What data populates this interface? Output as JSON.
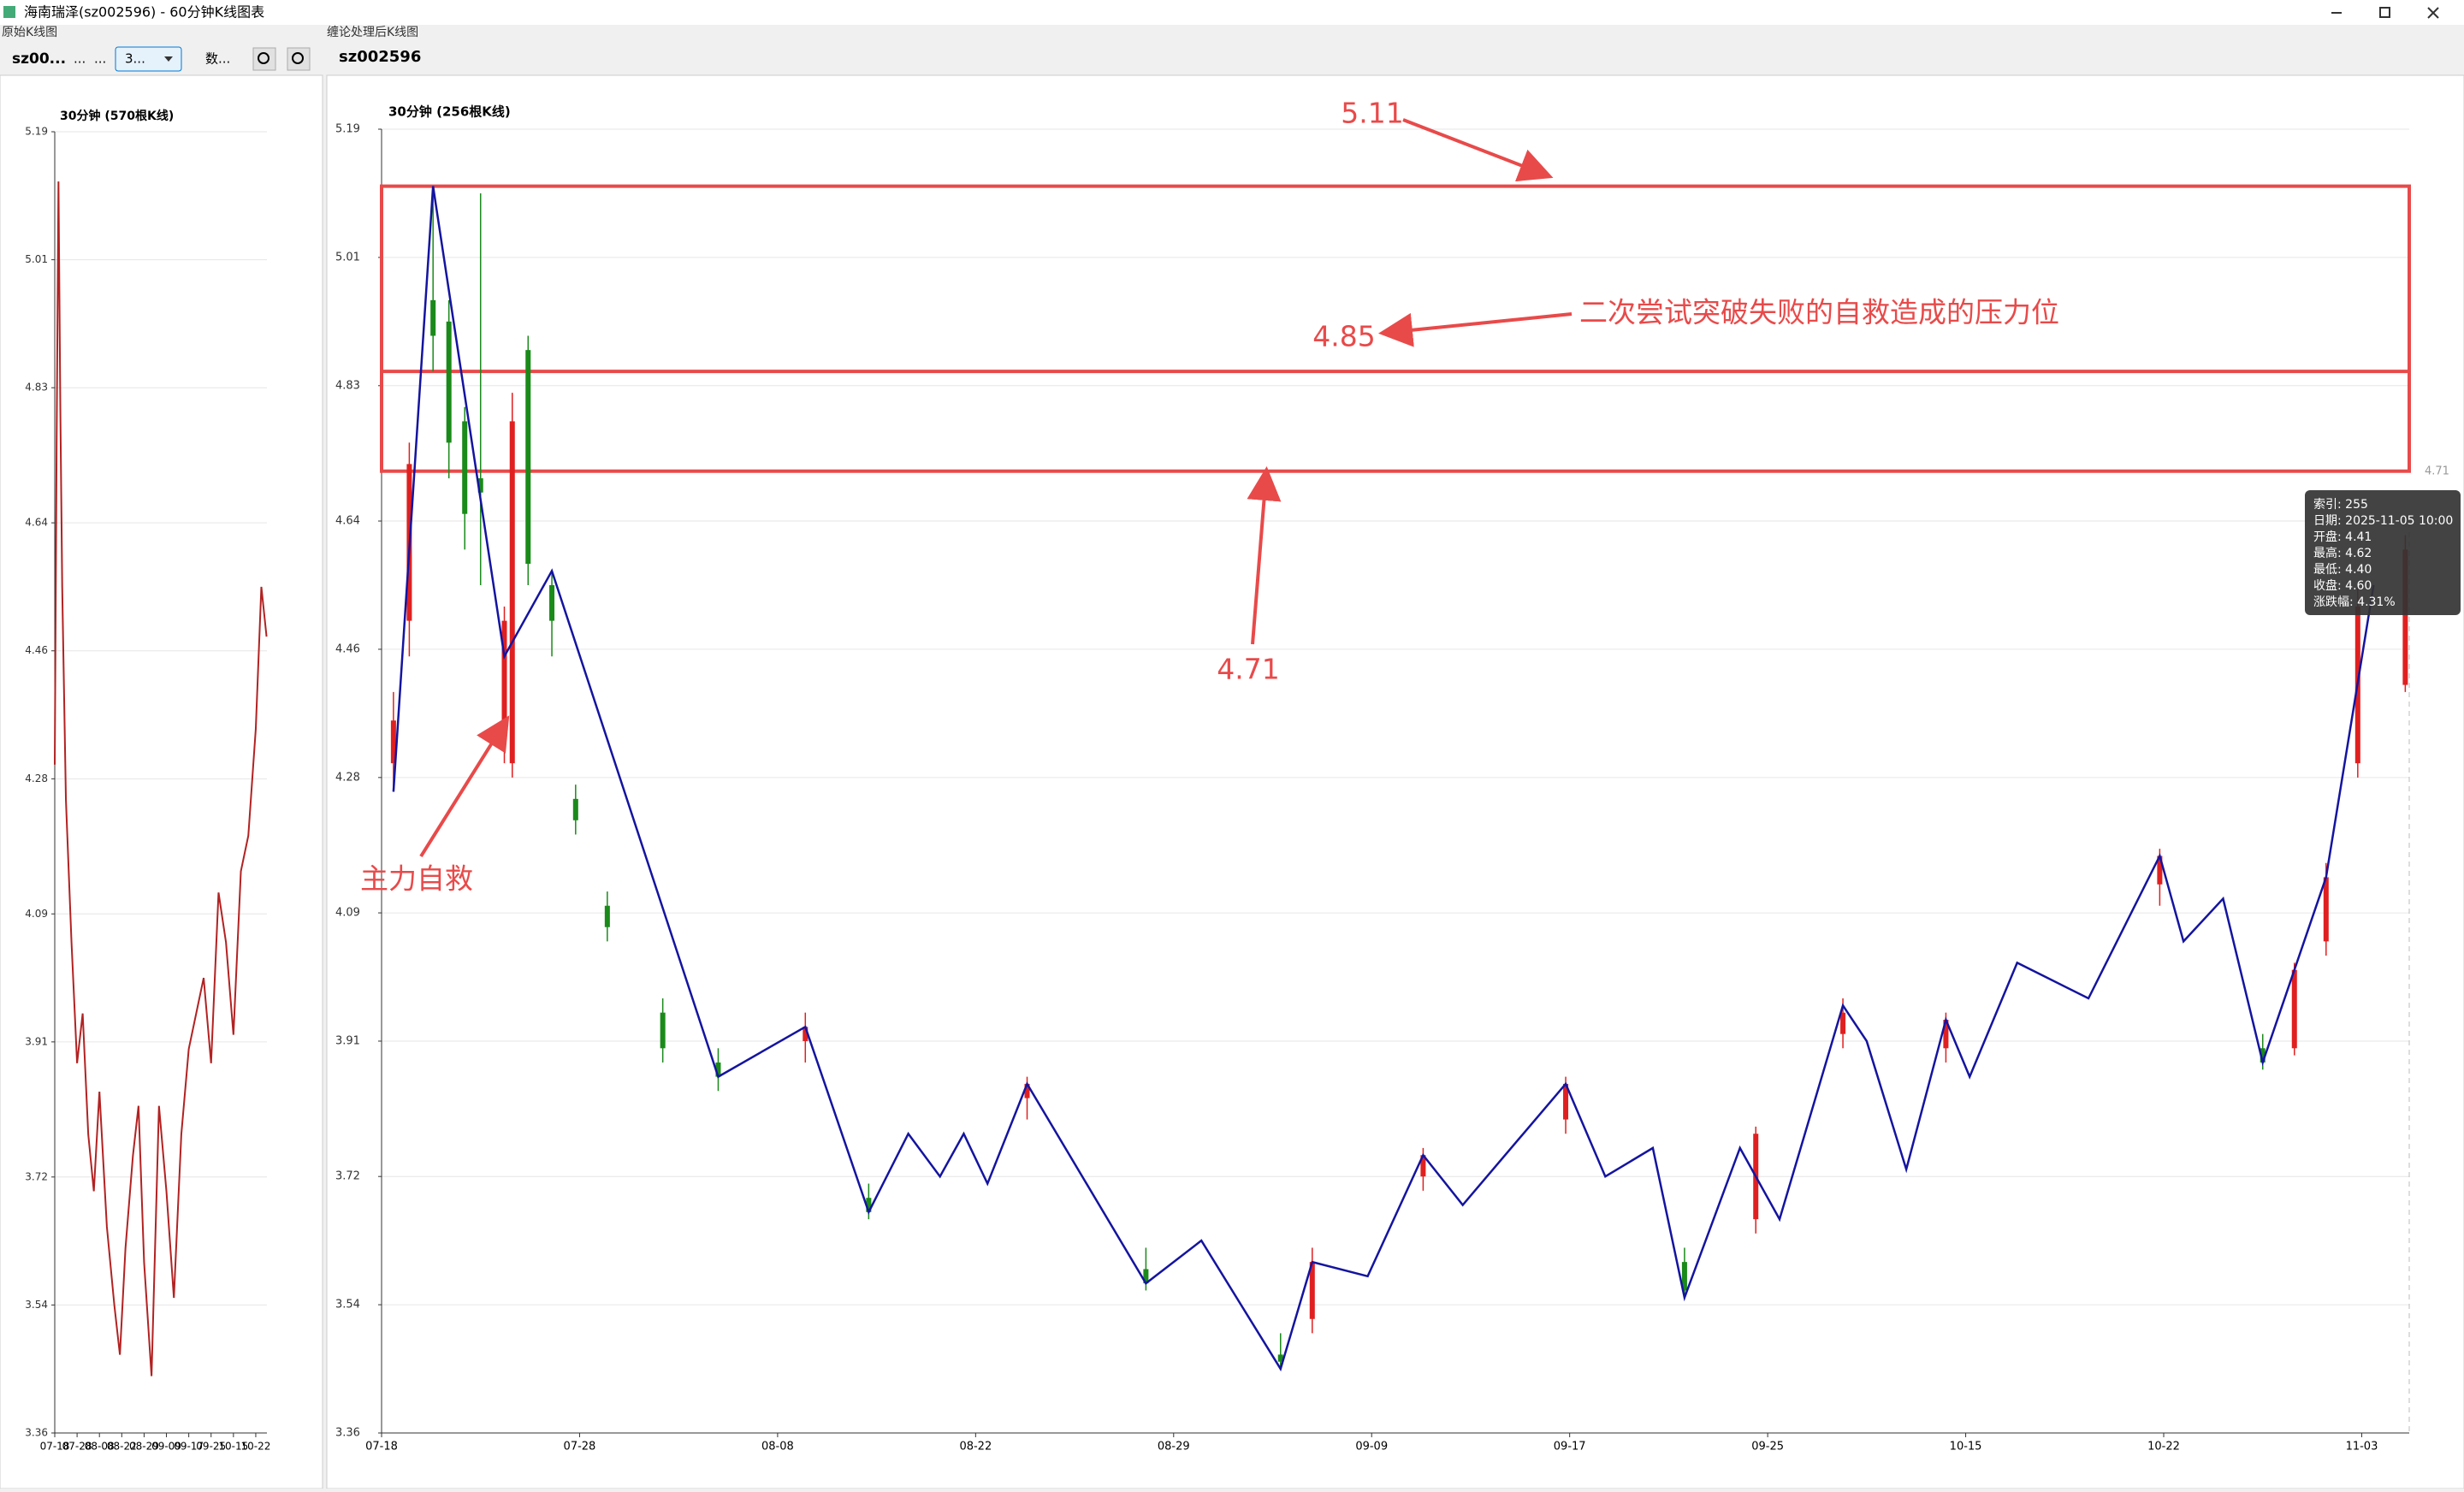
{
  "window": {
    "title": "海南瑞泽(sz002596) - 60分钟K线图表"
  },
  "left_panel": {
    "label": "原始K线图",
    "symbol": "sz00...",
    "field1": "...",
    "field2": "...",
    "combo": "3...",
    "field3": "数..."
  },
  "right_panel": {
    "label": "缠论处理后K线图",
    "symbol": "sz002596"
  },
  "chart_data": [
    {
      "type": "line",
      "title": "30分钟 (570根K线)",
      "color": "#b22222",
      "x": [
        0,
        5,
        10,
        15,
        20,
        30,
        45,
        60,
        75,
        90,
        105,
        120,
        140,
        160,
        175,
        190,
        210,
        225,
        240,
        260,
        280,
        300,
        320,
        340,
        360,
        380,
        400,
        420,
        440,
        460,
        480,
        500,
        520,
        540,
        555,
        569
      ],
      "y": [
        4.3,
        4.75,
        5.12,
        4.8,
        4.55,
        4.25,
        4.05,
        3.88,
        3.95,
        3.78,
        3.7,
        3.84,
        3.65,
        3.54,
        3.47,
        3.62,
        3.75,
        3.82,
        3.6,
        3.44,
        3.82,
        3.7,
        3.55,
        3.78,
        3.9,
        3.95,
        4.0,
        3.88,
        4.12,
        4.05,
        3.92,
        4.15,
        4.2,
        4.35,
        4.55,
        4.48
      ],
      "xlim": [
        0,
        570
      ],
      "ylim": [
        3.36,
        5.19
      ],
      "yticks": [
        5.19,
        5.01,
        4.83,
        4.64,
        4.46,
        4.28,
        4.09,
        3.91,
        3.72,
        3.54,
        3.36
      ],
      "xticks": [
        {
          "value": 0,
          "label": "07-18"
        },
        {
          "value": 60,
          "label": "07-28"
        },
        {
          "value": 120,
          "label": "08-08"
        },
        {
          "value": 180,
          "label": "08-22"
        },
        {
          "value": 240,
          "label": "08-29"
        },
        {
          "value": 300,
          "label": "09-09"
        },
        {
          "value": 360,
          "label": "09-17"
        },
        {
          "value": 420,
          "label": "09-25"
        },
        {
          "value": 480,
          "label": "10-15"
        },
        {
          "value": 540,
          "label": "10-22"
        }
      ],
      "grid": true
    },
    {
      "type": "candlestick",
      "title": "30分钟 (256根K线)",
      "up_color": "#e02020",
      "down_color": "#1a8a1a",
      "zigzag_color": "#1414a0",
      "xlim": [
        0,
        256
      ],
      "ylim": [
        3.36,
        5.19
      ],
      "yticks": [
        5.19,
        5.01,
        4.83,
        4.64,
        4.46,
        4.28,
        4.09,
        3.91,
        3.72,
        3.54,
        3.36
      ],
      "xticks": [
        {
          "value": 0,
          "label": "07-18"
        },
        {
          "value": 25,
          "label": "07-28"
        },
        {
          "value": 50,
          "label": "08-08"
        },
        {
          "value": 75,
          "label": "08-22"
        },
        {
          "value": 100,
          "label": "08-29"
        },
        {
          "value": 125,
          "label": "09-09"
        },
        {
          "value": 150,
          "label": "09-17"
        },
        {
          "value": 175,
          "label": "09-25"
        },
        {
          "value": 200,
          "label": "10-15"
        },
        {
          "value": 225,
          "label": "10-22"
        },
        {
          "value": 250,
          "label": "11-03"
        }
      ],
      "grid": true,
      "candles": [
        {
          "x": 1,
          "open": 4.3,
          "high": 4.4,
          "low": 4.26,
          "close": 4.36
        },
        {
          "x": 3,
          "open": 4.5,
          "high": 4.75,
          "low": 4.45,
          "close": 4.72
        },
        {
          "x": 6,
          "open": 4.95,
          "high": 5.11,
          "low": 4.85,
          "close": 4.9
        },
        {
          "x": 8,
          "open": 4.92,
          "high": 4.95,
          "low": 4.7,
          "close": 4.75
        },
        {
          "x": 10,
          "open": 4.78,
          "high": 4.8,
          "low": 4.6,
          "close": 4.65
        },
        {
          "x": 12,
          "open": 4.7,
          "high": 5.1,
          "low": 4.55,
          "close": 4.68
        },
        {
          "x": 15,
          "open": 4.35,
          "high": 4.52,
          "low": 4.3,
          "close": 4.5
        },
        {
          "x": 16,
          "open": 4.3,
          "high": 4.82,
          "low": 4.28,
          "close": 4.78
        },
        {
          "x": 18,
          "open": 4.88,
          "high": 4.9,
          "low": 4.55,
          "close": 4.58
        },
        {
          "x": 21,
          "open": 4.55,
          "high": 4.57,
          "low": 4.45,
          "close": 4.5
        },
        {
          "x": 24,
          "open": 4.25,
          "high": 4.27,
          "low": 4.2,
          "close": 4.22
        },
        {
          "x": 28,
          "open": 4.1,
          "high": 4.12,
          "low": 4.05,
          "close": 4.07
        },
        {
          "x": 35,
          "open": 3.95,
          "high": 3.97,
          "low": 3.88,
          "close": 3.9
        },
        {
          "x": 42,
          "open": 3.88,
          "high": 3.9,
          "low": 3.84,
          "close": 3.86
        },
        {
          "x": 53,
          "open": 3.91,
          "high": 3.95,
          "low": 3.88,
          "close": 3.93
        },
        {
          "x": 61,
          "open": 3.69,
          "high": 3.71,
          "low": 3.66,
          "close": 3.67
        },
        {
          "x": 81,
          "open": 3.83,
          "high": 3.86,
          "low": 3.8,
          "close": 3.85
        },
        {
          "x": 96,
          "open": 3.59,
          "high": 3.62,
          "low": 3.56,
          "close": 3.57
        },
        {
          "x": 113,
          "open": 3.47,
          "high": 3.5,
          "low": 3.45,
          "close": 3.46
        },
        {
          "x": 117,
          "open": 3.52,
          "high": 3.62,
          "low": 3.5,
          "close": 3.6
        },
        {
          "x": 131,
          "open": 3.72,
          "high": 3.76,
          "low": 3.7,
          "close": 3.75
        },
        {
          "x": 149,
          "open": 3.8,
          "high": 3.86,
          "low": 3.78,
          "close": 3.85
        },
        {
          "x": 164,
          "open": 3.6,
          "high": 3.62,
          "low": 3.55,
          "close": 3.56
        },
        {
          "x": 173,
          "open": 3.66,
          "high": 3.79,
          "low": 3.64,
          "close": 3.78
        },
        {
          "x": 184,
          "open": 3.92,
          "high": 3.97,
          "low": 3.9,
          "close": 3.95
        },
        {
          "x": 197,
          "open": 3.9,
          "high": 3.95,
          "low": 3.88,
          "close": 3.94
        },
        {
          "x": 224,
          "open": 4.13,
          "high": 4.18,
          "low": 4.1,
          "close": 4.17
        },
        {
          "x": 237,
          "open": 3.9,
          "high": 3.92,
          "low": 3.87,
          "close": 3.88
        },
        {
          "x": 241,
          "open": 3.9,
          "high": 4.02,
          "low": 3.89,
          "close": 4.01
        },
        {
          "x": 245,
          "open": 4.05,
          "high": 4.16,
          "low": 4.03,
          "close": 4.14
        },
        {
          "x": 249,
          "open": 4.3,
          "high": 4.55,
          "low": 4.28,
          "close": 4.52
        },
        {
          "x": 255,
          "open": 4.41,
          "high": 4.62,
          "low": 4.4,
          "close": 4.6
        }
      ],
      "zigzag": {
        "x": [
          1,
          6,
          15,
          21,
          42,
          53,
          61,
          66,
          70,
          73,
          76,
          81,
          96,
          103,
          113,
          117,
          124,
          131,
          136,
          149,
          154,
          160,
          164,
          171,
          176,
          184,
          187,
          192,
          197,
          200,
          206,
          215,
          224,
          227,
          232,
          237,
          245,
          251
        ],
        "y": [
          4.26,
          5.11,
          4.45,
          4.57,
          3.86,
          3.93,
          3.67,
          3.78,
          3.72,
          3.78,
          3.71,
          3.85,
          3.57,
          3.63,
          3.45,
          3.6,
          3.58,
          3.75,
          3.68,
          3.85,
          3.72,
          3.76,
          3.55,
          3.76,
          3.66,
          3.96,
          3.91,
          3.73,
          3.94,
          3.86,
          4.02,
          3.97,
          4.17,
          4.05,
          4.11,
          3.88,
          4.14,
          4.55
        ]
      },
      "levels": [
        5.11,
        4.85,
        4.71
      ],
      "annotation": "二次尝试突破失败的自救造成的压力位",
      "annotation2": "主力自救",
      "tooltip": [
        "索引: 255",
        "日期: 2025-11-05 10:00",
        "开盘: 4.41",
        "最高: 4.62",
        "最低: 4.40",
        "收盘: 4.60",
        "涨跌幅: 4.31%"
      ]
    }
  ]
}
